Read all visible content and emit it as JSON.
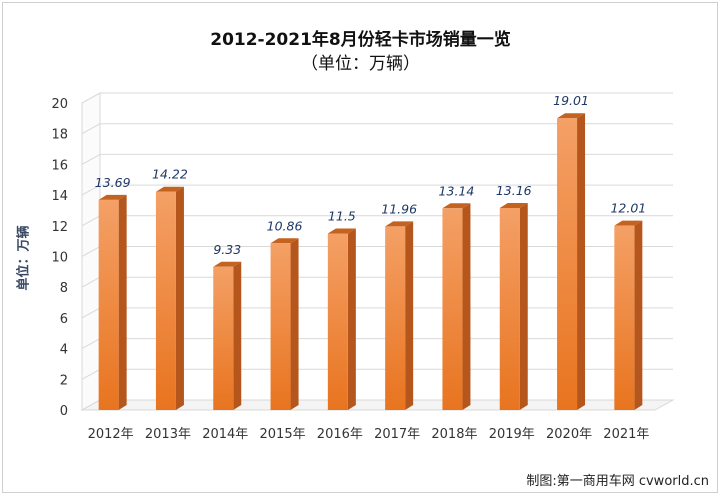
{
  "credit": "制图:第一商用车网 cvworld.cn",
  "chart_data": {
    "type": "bar",
    "title": "2012-2021年8月份轻卡市场销量一览",
    "subtitle": "（单位：万辆）",
    "ylabel": "单位：万辆",
    "xlabel": "",
    "categories": [
      "2012年",
      "2013年",
      "2014年",
      "2015年",
      "2016年",
      "2017年",
      "2018年",
      "2019年",
      "2020年",
      "2021年"
    ],
    "values": [
      13.69,
      14.22,
      9.33,
      10.86,
      11.5,
      11.96,
      13.14,
      13.16,
      19.01,
      12.01
    ],
    "value_labels": [
      "13.69",
      "14.22",
      "9.33",
      "10.86",
      "11.5",
      "11.96",
      "13.14",
      "13.16",
      "19.01",
      "12.01"
    ],
    "ylim": [
      0,
      20
    ],
    "yticks": [
      "0",
      "2",
      "4",
      "6",
      "8",
      "10",
      "12",
      "14",
      "16",
      "18",
      "20"
    ],
    "grid": true,
    "legend": "none",
    "colors": {
      "bar_light": "#f4a066",
      "bar_dark": "#e8741f",
      "bar_side": "#b5561c",
      "bar_top": "#c4621f",
      "grid": "#d9d9d9",
      "label": "#1f3864"
    }
  }
}
